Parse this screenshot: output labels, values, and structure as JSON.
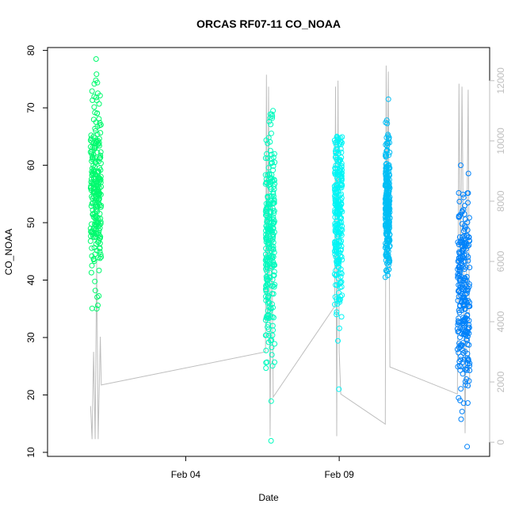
{
  "chart_data": {
    "type": "scatter",
    "title": "ORCAS RF07-11 CO_NOAA",
    "xlabel": "Date",
    "ylabel": "CO_NOAA",
    "x_unit": "days since Feb 01",
    "x_ticks": [
      {
        "label": "Feb 04",
        "value": 3
      },
      {
        "label": "Feb 09",
        "value": 8
      }
    ],
    "xlim": [
      -1.5,
      12.9
    ],
    "ylim": [
      9.3,
      80.5
    ],
    "y_ticks": [
      10,
      20,
      30,
      40,
      50,
      60,
      70,
      80
    ],
    "y2lim": [
      -470,
      13100
    ],
    "y2_ticks": [
      0,
      2000,
      4000,
      6000,
      8000,
      10000,
      12000
    ],
    "grid": false,
    "series": [
      {
        "color": "#00FA6E",
        "x_range": [
          -0.1,
          0.25
        ],
        "y_range": [
          35,
          78.5
        ],
        "y_median": 55
      },
      {
        "color": "#00FABE",
        "x_range": [
          5.6,
          5.9
        ],
        "y_range": [
          12,
          69.5
        ],
        "y_median": 47
      },
      {
        "color": "#00F5F5",
        "x_range": [
          7.85,
          8.1
        ],
        "y_range": [
          21,
          65
        ],
        "y_median": 51
      },
      {
        "color": "#00BEF5",
        "x_range": [
          9.5,
          9.65
        ],
        "y_range": [
          40.5,
          71.5
        ],
        "y_median": 53
      },
      {
        "color": "#0082FA",
        "x_range": [
          11.85,
          12.25
        ],
        "y_range": [
          11,
          60
        ],
        "y_median": 37
      }
    ],
    "altitude_trace": {
      "color": "#BEBEBE",
      "axis": "right",
      "points": [
        [
          -0.1,
          1200
        ],
        [
          -0.05,
          100
        ],
        [
          0.0,
          3000
        ],
        [
          0.05,
          100
        ],
        [
          0.1,
          6000
        ],
        [
          0.15,
          100
        ],
        [
          0.22,
          3500
        ],
        [
          0.25,
          1900
        ],
        [
          5.6,
          3000
        ],
        [
          5.63,
          12200
        ],
        [
          5.66,
          4000
        ],
        [
          5.7,
          11800
        ],
        [
          5.75,
          200
        ],
        [
          5.8,
          8000
        ],
        [
          5.85,
          1500
        ],
        [
          7.85,
          4500
        ],
        [
          7.88,
          11800
        ],
        [
          7.92,
          200
        ],
        [
          7.96,
          12000
        ],
        [
          8.0,
          3000
        ],
        [
          8.05,
          1600
        ],
        [
          9.5,
          600
        ],
        [
          9.53,
          12500
        ],
        [
          9.56,
          7000
        ],
        [
          9.6,
          12300
        ],
        [
          9.65,
          2500
        ],
        [
          11.85,
          1600
        ],
        [
          11.9,
          11900
        ],
        [
          11.95,
          5000
        ],
        [
          12.0,
          11800
        ],
        [
          12.1,
          300
        ],
        [
          12.2,
          11700
        ],
        [
          12.25,
          1800
        ]
      ]
    }
  }
}
